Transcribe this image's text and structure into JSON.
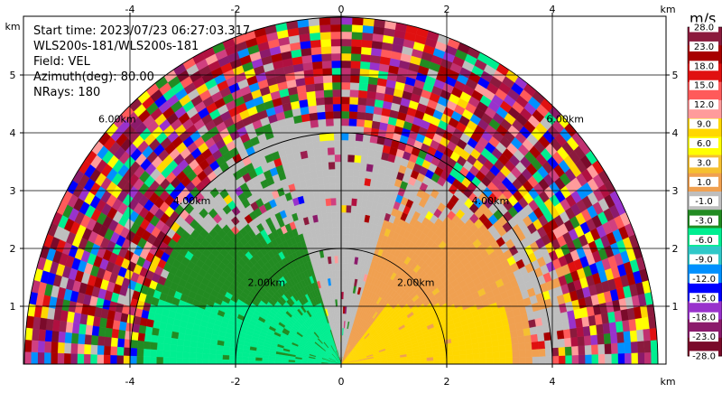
{
  "chart_data": {
    "type": "heatmap",
    "subtype": "radar-ppi-sector",
    "info": {
      "start_time": "Start time: 2023/07/23 06:27:03.317",
      "scan": "WLS200s-181/WLS200s-181",
      "field": "Field: VEL",
      "azimuth": "Azimuth(deg): 80.00",
      "nrays": "NRays: 180"
    },
    "axis_unit": "km",
    "x_range": [
      -5.8,
      6.0
    ],
    "y_range": [
      0,
      5.8
    ],
    "x_ticks": [
      -4,
      -2,
      0,
      2,
      4
    ],
    "y_ticks": [
      1,
      2,
      3,
      4,
      5
    ],
    "range_rings_km": [
      2,
      4,
      6
    ],
    "range_ring_labels": [
      "2.00km",
      "4.00km",
      "6.00km"
    ],
    "max_range_km": 6.0,
    "colorbar": {
      "unit": "m/s",
      "ticks": [
        "28.0",
        "23.0",
        "18.0",
        "15.0",
        "12.0",
        "9.0",
        "6.0",
        "3.0",
        "1.0",
        "-1.0",
        "-3.0",
        "-6.0",
        "-9.0",
        "-12.0",
        "-15.0",
        "-18.0",
        "-23.0",
        "-28.0"
      ],
      "colors": [
        "#8b1a3d",
        "#a80000",
        "#e01010",
        "#ff5a5a",
        "#ff9b9b",
        "#ffd700",
        "#ffff00",
        "#f5c030",
        "#f0a050",
        "#bebebe",
        "#228b22",
        "#00ee90",
        "#30c8c8",
        "#0090ff",
        "#0000ff",
        "#9932cc",
        "#8b1a6b",
        "#7a0a2a"
      ]
    },
    "regions": [
      {
        "name": "inner-positive",
        "azimuth_range_deg": [
          0,
          90
        ],
        "range_km": [
          0,
          3.7
        ],
        "value_ms": 1.5,
        "color": "#f0a050"
      },
      {
        "name": "inner-positive-core",
        "azimuth_range_deg": [
          0,
          55
        ],
        "range_km": [
          0,
          3.0
        ],
        "value_ms": 3.0,
        "color": "#ffd700"
      },
      {
        "name": "inner-negative",
        "azimuth_range_deg": [
          90,
          180
        ],
        "range_km": [
          0,
          4.0
        ],
        "value_ms": -4.5,
        "color": "#00ee90"
      },
      {
        "name": "inner-negative-outer",
        "azimuth_range_deg": [
          100,
          180
        ],
        "range_km": [
          1.5,
          4.3
        ],
        "value_ms": -2.0,
        "color": "#228b22"
      },
      {
        "name": "near-zero",
        "azimuth_range_deg": [
          60,
          120
        ],
        "range_km": [
          0,
          4.5
        ],
        "value_ms": 0.0,
        "color": "#bebebe"
      },
      {
        "name": "noise",
        "azimuth_range_deg": [
          0,
          180
        ],
        "range_km": [
          4.0,
          6.0
        ],
        "value_ms": null,
        "color": "mixed"
      }
    ],
    "grid": true
  }
}
